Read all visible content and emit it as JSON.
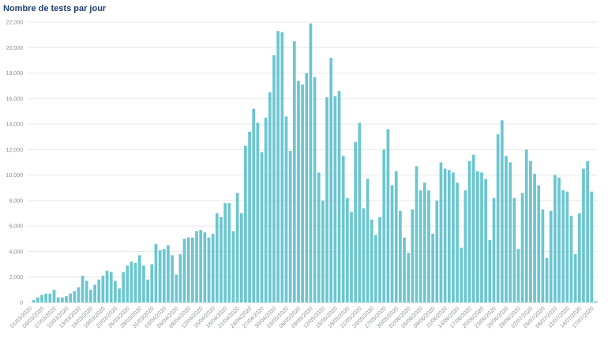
{
  "chart_data": {
    "type": "bar",
    "title": "Nombre de tests par jour",
    "color": "#6cc6d0",
    "grid": true,
    "ylim": [
      0,
      22000
    ],
    "yticks": [
      0,
      {
        "value": 2000,
        "label": "2,000"
      },
      {
        "value": 4000,
        "label": "4,000"
      },
      {
        "value": 6000,
        "label": "6,000"
      },
      {
        "value": 8000,
        "label": "8,000"
      },
      {
        "value": 10000,
        "label": "10,000"
      },
      {
        "value": 12000,
        "label": "12,000"
      },
      {
        "value": 14000,
        "label": "14,000"
      },
      {
        "value": 16000,
        "label": "16,000"
      },
      {
        "value": 18000,
        "label": "18,000"
      },
      {
        "value": 20000,
        "label": "20,000"
      },
      {
        "value": 22000,
        "label": "22,000"
      }
    ],
    "categories": [
      "01/03/2020",
      null,
      null,
      "04/03/2020",
      null,
      null,
      "07/03/2020",
      null,
      null,
      "10/03/2020",
      null,
      null,
      "13/03/2020",
      null,
      null,
      "16/03/2020",
      null,
      null,
      "19/03/2020",
      null,
      null,
      "22/03/2020",
      null,
      null,
      "25/03/2020",
      null,
      null,
      "28/03/2020",
      null,
      null,
      "31/03/2020",
      null,
      null,
      "03/04/2020",
      null,
      null,
      "06/04/2020",
      null,
      null,
      "09/04/2020",
      null,
      null,
      "12/04/2020",
      null,
      null,
      "15/04/2020",
      null,
      null,
      "18/04/2020",
      null,
      null,
      "21/04/2020",
      null,
      null,
      "24/04/2020",
      null,
      null,
      "27/04/2020",
      null,
      null,
      "30/04/2020",
      null,
      null,
      "03/05/2020",
      null,
      null,
      "06/05/2020",
      null,
      null,
      "09/05/2020",
      null,
      null,
      "12/05/2020",
      null,
      null,
      "15/05/2020",
      null,
      null,
      "18/05/2020",
      null,
      null,
      "21/05/2020",
      null,
      null,
      "24/05/2020",
      null,
      null,
      "27/05/2020",
      null,
      null,
      "30/05/2020",
      null,
      null,
      "02/06/2020",
      null,
      null,
      "05/06/2020",
      null,
      null,
      "08/06/2020",
      null,
      null,
      "11/06/2020",
      null,
      null,
      "14/06/2020",
      null,
      null,
      "17/06/2020",
      null,
      null,
      "20/06/2020",
      null,
      null,
      "23/06/2020",
      null,
      null,
      "26/06/2020",
      null,
      null,
      "29/06/2020",
      null,
      null,
      "02/07/2020",
      null,
      null,
      "05/07/2020",
      null,
      null,
      "08/07/2020",
      null,
      null,
      "11/07/2020",
      null,
      null,
      "14/07/2020",
      null,
      null,
      "17/07/2020",
      null
    ],
    "values": [
      0,
      200,
      400,
      600,
      700,
      700,
      1000,
      400,
      400,
      500,
      700,
      900,
      1200,
      2100,
      1700,
      1000,
      1400,
      1800,
      2100,
      2500,
      2400,
      1700,
      1100,
      2400,
      2900,
      3200,
      3100,
      3700,
      2900,
      1800,
      3000,
      4600,
      4100,
      4200,
      4500,
      3700,
      2200,
      3800,
      5000,
      5100,
      5100,
      5600,
      5700,
      5500,
      5100,
      5400,
      7000,
      6700,
      7800,
      7800,
      5600,
      8600,
      7000,
      12300,
      13400,
      15200,
      14100,
      11800,
      14500,
      16500,
      19400,
      21300,
      21200,
      14600,
      11900,
      20500,
      17400,
      17100,
      18000,
      21900,
      17700,
      10200,
      8000,
      16100,
      19200,
      16200,
      16600,
      11500,
      8200,
      7100,
      12600,
      14100,
      7400,
      9700,
      6500,
      5300,
      6700,
      12000,
      13600,
      9200,
      10300,
      7200,
      5100,
      3900,
      7300,
      10700,
      8800,
      9400,
      8800,
      5400,
      8000,
      11000,
      10500,
      10400,
      10200,
      9400,
      4300,
      8800,
      11100,
      11600,
      10300,
      10200,
      9700,
      4900,
      8200,
      13200,
      14300,
      11500,
      11000,
      8200,
      4200,
      8600,
      12000,
      11100,
      10100,
      9200,
      7300,
      3500,
      7200,
      10000,
      9800,
      8800,
      8700,
      6800,
      3800,
      7000,
      10500,
      11100,
      8700,
      100
    ]
  }
}
